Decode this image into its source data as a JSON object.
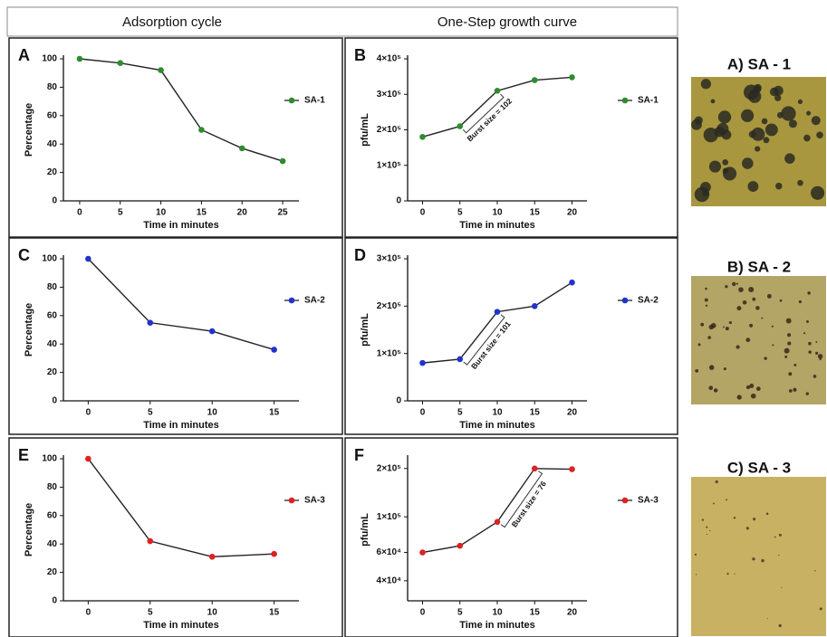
{
  "header": {
    "left": "Adsorption cycle",
    "right": "One-Step growth curve"
  },
  "photos": [
    {
      "title": "A) SA - 1"
    },
    {
      "title": "B) SA - 2"
    },
    {
      "title": "C) SA - 3"
    }
  ],
  "chart_data": [
    {
      "type": "line",
      "letter": "A",
      "xlabel": "Time in minutes",
      "ylabel": "Percentage",
      "x": [
        0,
        5,
        10,
        15,
        20,
        25
      ],
      "series": [
        {
          "name": "SA-1",
          "color": "#2e8b2e",
          "values": [
            100,
            97,
            92,
            50,
            37,
            28
          ]
        }
      ],
      "xlim": [
        -2,
        27
      ],
      "xticks": [
        0,
        5,
        10,
        15,
        20,
        25
      ],
      "ylim": [
        0,
        100
      ],
      "yticks": [
        0,
        20,
        40,
        60,
        80,
        100
      ]
    },
    {
      "type": "line",
      "letter": "B",
      "xlabel": "Time in minutes",
      "ylabel": "pfu/mL",
      "annotation": "Burst size = 102",
      "x": [
        0,
        5,
        10,
        15,
        20
      ],
      "series": [
        {
          "name": "SA-1",
          "color": "#2e8b2e",
          "values": [
            180000,
            210000,
            310000,
            340000,
            348000
          ]
        }
      ],
      "xlim": [
        -2,
        22
      ],
      "xticks": [
        0,
        5,
        10,
        15,
        20
      ],
      "ylim": [
        0,
        400000
      ],
      "yticks": [
        0,
        {
          "value": 100000,
          "label": "1×10⁵"
        },
        {
          "value": 200000,
          "label": "2×10⁵"
        },
        {
          "value": 300000,
          "label": "3×10⁵"
        },
        {
          "value": 400000,
          "label": "4×10⁵"
        }
      ]
    },
    {
      "type": "line",
      "letter": "C",
      "xlabel": "Time in minutes",
      "ylabel": "Percentage",
      "x": [
        0,
        5,
        10,
        15
      ],
      "series": [
        {
          "name": "SA-2",
          "color": "#2233cc",
          "values": [
            100,
            55,
            49,
            36
          ]
        }
      ],
      "xlim": [
        -2,
        17
      ],
      "xticks": [
        0,
        5,
        10,
        15
      ],
      "ylim": [
        0,
        100
      ],
      "yticks": [
        0,
        20,
        40,
        60,
        80,
        100
      ]
    },
    {
      "type": "line",
      "letter": "D",
      "xlabel": "Time in minutes",
      "ylabel": "pfu/mL",
      "annotation": "Burst size = 101",
      "x": [
        0,
        5,
        10,
        15,
        20
      ],
      "series": [
        {
          "name": "SA-2",
          "color": "#2233cc",
          "values": [
            80000,
            88000,
            188000,
            200000,
            250000
          ]
        }
      ],
      "xlim": [
        -2,
        22
      ],
      "xticks": [
        0,
        5,
        10,
        15,
        20
      ],
      "ylim": [
        0,
        300000
      ],
      "yticks": [
        0,
        {
          "value": 100000,
          "label": "1×10⁵"
        },
        {
          "value": 200000,
          "label": "2×10⁵"
        },
        {
          "value": 300000,
          "label": "3×10⁵"
        }
      ]
    },
    {
      "type": "line",
      "letter": "E",
      "xlabel": "Time in minutes",
      "ylabel": "Percentage",
      "x": [
        0,
        5,
        10,
        15
      ],
      "series": [
        {
          "name": "SA-3",
          "color": "#dd2222",
          "values": [
            100,
            42,
            31,
            33
          ]
        }
      ],
      "xlim": [
        -2,
        17
      ],
      "xticks": [
        0,
        5,
        10,
        15
      ],
      "ylim": [
        0,
        100
      ],
      "yticks": [
        0,
        20,
        40,
        60,
        80,
        100
      ]
    },
    {
      "type": "line",
      "letter": "F",
      "xlabel": "Time in minutes",
      "ylabel": "pfu/mL",
      "annotation": "Burst size = 76",
      "log_scale": true,
      "x": [
        0,
        5,
        10,
        15,
        20
      ],
      "series": [
        {
          "name": "SA-3",
          "color": "#dd2222",
          "values": [
            60000,
            66000,
            93000,
            200000,
            198000
          ]
        }
      ],
      "xlim": [
        -2,
        22
      ],
      "xticks": [
        0,
        5,
        10,
        15,
        20
      ],
      "ylim": [
        30000,
        230000
      ],
      "yticks": [
        {
          "value": 40000,
          "label": "4×10⁴"
        },
        {
          "value": 60000,
          "label": "6×10⁴"
        },
        {
          "value": 100000,
          "label": "1×10⁵"
        },
        {
          "value": 200000,
          "label": "2×10⁵"
        }
      ]
    }
  ]
}
